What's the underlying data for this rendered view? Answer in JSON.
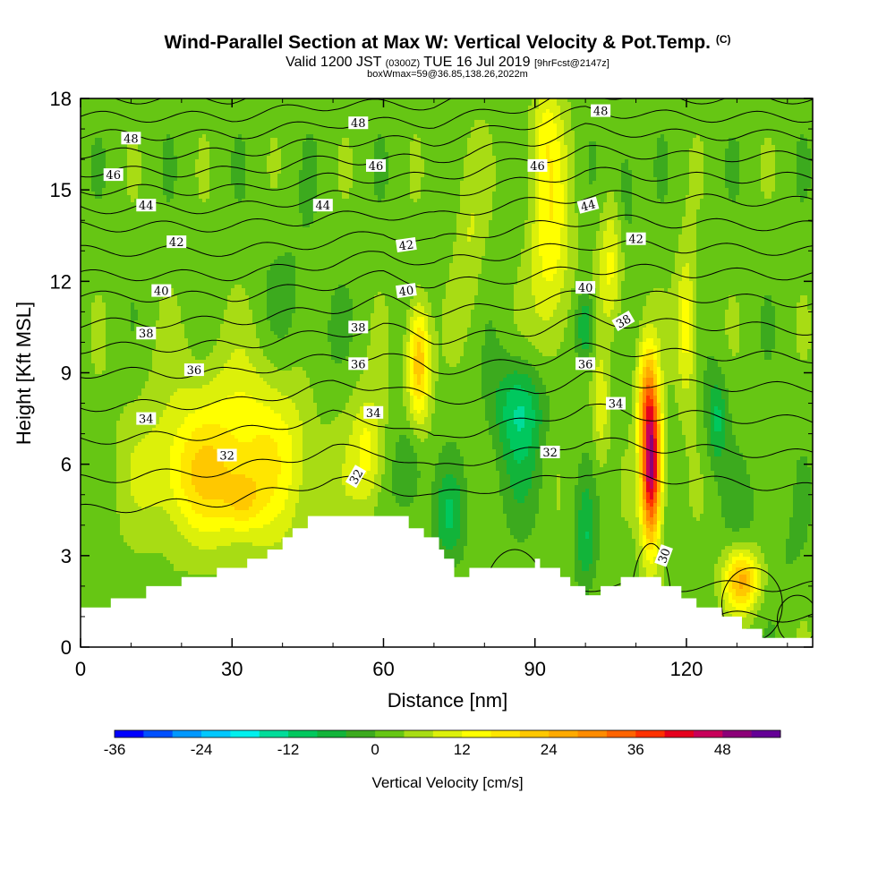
{
  "header": {
    "title": "Wind-Parallel Section at Max W: Vertical Velocity & Pot.Temp.",
    "copyright": "(C)",
    "valid_main": "Valid 1200 JST",
    "valid_utc": "(0300Z)",
    "valid_date": "TUE 16 Jul 2019",
    "forecast": "[9hrFcst@2147z]",
    "box_info": "boxWmax=59@36.85,138.26,2022m"
  },
  "chart_data": {
    "type": "heatmap",
    "xlabel": "Distance [nm]",
    "ylabel": "Height [Kft MSL]",
    "colorbar_label": "Vertical Velocity [cm/s]",
    "xlim": [
      0,
      145
    ],
    "ylim": [
      0,
      18
    ],
    "x_ticks": [
      0,
      30,
      60,
      90,
      120
    ],
    "y_ticks": [
      0,
      3,
      6,
      9,
      12,
      15,
      18
    ],
    "colorbar": {
      "min": -36,
      "max": 56,
      "step": 4,
      "tick_values": [
        -36,
        -24,
        -12,
        0,
        12,
        24,
        36,
        48
      ],
      "colors": [
        "#0000ff",
        "#0050ff",
        "#0098ff",
        "#00c8ff",
        "#00f0ee",
        "#00dc9a",
        "#00c85e",
        "#12b43a",
        "#3caa1e",
        "#66c614",
        "#a8dc14",
        "#dcf00a",
        "#ffff00",
        "#ffe600",
        "#ffc800",
        "#ffaa00",
        "#ff8c00",
        "#ff6400",
        "#ff3200",
        "#e6001e",
        "#c8005a",
        "#8c0078",
        "#640096"
      ]
    },
    "terrain": [
      [
        0,
        1.3
      ],
      [
        6,
        1.3
      ],
      [
        6,
        1.6
      ],
      [
        13,
        1.6
      ],
      [
        13,
        2.0
      ],
      [
        20,
        2.0
      ],
      [
        20,
        2.3
      ],
      [
        27,
        2.3
      ],
      [
        27,
        2.6
      ],
      [
        33,
        2.6
      ],
      [
        33,
        2.9
      ],
      [
        37,
        2.9
      ],
      [
        37,
        3.2
      ],
      [
        40,
        3.2
      ],
      [
        40,
        3.6
      ],
      [
        42,
        3.6
      ],
      [
        42,
        3.9
      ],
      [
        45,
        3.9
      ],
      [
        45,
        4.3
      ],
      [
        65,
        4.3
      ],
      [
        65,
        3.9
      ],
      [
        68,
        3.9
      ],
      [
        68,
        3.6
      ],
      [
        71,
        3.6
      ],
      [
        71,
        3.2
      ],
      [
        72,
        3.2
      ],
      [
        72,
        2.9
      ],
      [
        74,
        2.9
      ],
      [
        74,
        2.3
      ],
      [
        77,
        2.3
      ],
      [
        77,
        2.6
      ],
      [
        90,
        2.6
      ],
      [
        90,
        2.9
      ],
      [
        91,
        2.9
      ],
      [
        91,
        2.6
      ],
      [
        95,
        2.6
      ],
      [
        95,
        2.3
      ],
      [
        97,
        2.3
      ],
      [
        97,
        2.0
      ],
      [
        100,
        2.0
      ],
      [
        100,
        1.7
      ],
      [
        103,
        1.7
      ],
      [
        103,
        2.0
      ],
      [
        107,
        2.0
      ],
      [
        107,
        2.3
      ],
      [
        115,
        2.3
      ],
      [
        115,
        2.0
      ],
      [
        119,
        2.0
      ],
      [
        119,
        1.6
      ],
      [
        122,
        1.6
      ],
      [
        122,
        1.3
      ],
      [
        127,
        1.3
      ],
      [
        127,
        1.0
      ],
      [
        131,
        1.0
      ],
      [
        131,
        0.6
      ],
      [
        135,
        0.6
      ],
      [
        135,
        0.3
      ],
      [
        145,
        0.3
      ]
    ],
    "w_features": [
      {
        "x": 33,
        "z": 6.4,
        "sx": 18,
        "sz": 3.0,
        "w": 14
      },
      {
        "x": 22,
        "z": 5.5,
        "sx": 9,
        "sz": 1.8,
        "w": 8
      },
      {
        "x": 32,
        "z": 4.8,
        "sx": 4,
        "sz": 1.0,
        "w": 10
      },
      {
        "x": 42,
        "z": 11.0,
        "sx": 6,
        "sz": 3.0,
        "w": -3
      },
      {
        "x": 48,
        "z": 8.0,
        "sx": 5,
        "sz": 3.0,
        "w": -4
      },
      {
        "x": 57,
        "z": 6.4,
        "sx": 3,
        "sz": 1.8,
        "w": 10
      },
      {
        "x": 67,
        "z": 9.2,
        "sx": 2.2,
        "sz": 1.8,
        "w": 21
      },
      {
        "x": 67,
        "z": 10.5,
        "sx": 1.8,
        "sz": 1.2,
        "w": 4
      },
      {
        "x": 65,
        "z": 5.8,
        "sx": 3,
        "sz": 1.5,
        "w": -8
      },
      {
        "x": 73,
        "z": 4.3,
        "sx": 3,
        "sz": 1.5,
        "w": -9
      },
      {
        "x": 77,
        "z": 13.5,
        "sx": 3,
        "sz": 3.0,
        "w": 6
      },
      {
        "x": 87,
        "z": 7.8,
        "sx": 5,
        "sz": 1.6,
        "w": -14
      },
      {
        "x": 87,
        "z": 5.5,
        "sx": 5,
        "sz": 1.6,
        "w": -4
      },
      {
        "x": 93,
        "z": 13.5,
        "sx": 4,
        "sz": 4.0,
        "w": 13
      },
      {
        "x": 92,
        "z": 17.0,
        "sx": 2.5,
        "sz": 1.5,
        "w": 6
      },
      {
        "x": 100,
        "z": 10.5,
        "sx": 2,
        "sz": 1.2,
        "w": -12
      },
      {
        "x": 100,
        "z": 3.5,
        "sx": 2,
        "sz": 1.8,
        "w": -9
      },
      {
        "x": 103,
        "z": 7.8,
        "sx": 1.6,
        "sz": 2.0,
        "w": 9
      },
      {
        "x": 105,
        "z": 12.5,
        "sx": 2.5,
        "sz": 2.0,
        "w": 11
      },
      {
        "x": 108,
        "z": 15.0,
        "sx": 2,
        "sz": 2.0,
        "w": -6
      },
      {
        "x": 113,
        "z": 6.0,
        "sx": 2.0,
        "sz": 2.6,
        "w": 48
      },
      {
        "x": 112,
        "z": 8.5,
        "sx": 2.0,
        "sz": 1.8,
        "w": 14
      },
      {
        "x": 120,
        "z": 10.5,
        "sx": 2,
        "sz": 2.5,
        "w": 13
      },
      {
        "x": 126,
        "z": 7.5,
        "sx": 2,
        "sz": 1.5,
        "w": -11
      },
      {
        "x": 131,
        "z": 2.2,
        "sx": 3.5,
        "sz": 1.0,
        "w": 23
      },
      {
        "x": 132,
        "z": 4.5,
        "sx": 4,
        "sz": 1.5,
        "w": -3
      },
      {
        "x": 140,
        "z": 3.0,
        "sx": 4,
        "sz": 1.5,
        "w": -2
      }
    ],
    "theta_levels": [
      30,
      31,
      32,
      33,
      34,
      35,
      36,
      37,
      38,
      39,
      40,
      41,
      42,
      43,
      44,
      45,
      46,
      47,
      48,
      49
    ],
    "theta_anchors": [
      {
        "x": 0,
        "z": [
          0.5,
          1.0,
          4.5,
          5.5,
          6.8,
          7.9,
          9.0,
          9.8,
          10.6,
          11.5,
          12.2,
          13.0,
          13.8,
          14.4,
          15.0,
          15.6,
          16.2,
          16.8,
          17.4,
          18.0
        ]
      },
      {
        "x": 30,
        "z": [
          0.5,
          1.0,
          4.8,
          5.8,
          7.0,
          8.0,
          9.0,
          9.9,
          10.7,
          11.5,
          12.2,
          13.0,
          13.8,
          14.4,
          15.0,
          15.6,
          16.2,
          16.8,
          17.4,
          18.0
        ]
      },
      {
        "x": 50,
        "z": [
          1.0,
          2.0,
          5.5,
          6.5,
          7.6,
          8.6,
          9.5,
          10.3,
          11.1,
          11.9,
          12.6,
          13.3,
          14.1,
          14.8,
          15.4,
          16.0,
          16.6,
          17.2,
          17.8,
          18.5
        ]
      },
      {
        "x": 60,
        "z": [
          1.0,
          2.0,
          5.3,
          6.4,
          7.4,
          8.6,
          9.6,
          10.5,
          11.4,
          12.2,
          12.9,
          13.6,
          14.2,
          14.8,
          15.4,
          16.0,
          16.6,
          17.2,
          17.8,
          18.4
        ]
      },
      {
        "x": 70,
        "z": [
          1.0,
          2.0,
          4.9,
          5.8,
          6.8,
          8.1,
          9.1,
          10.1,
          11.0,
          11.9,
          12.6,
          13.3,
          14.1,
          14.8,
          15.4,
          16.0,
          16.6,
          17.2,
          17.8,
          18.4
        ]
      },
      {
        "x": 80,
        "z": [
          1.0,
          2.0,
          5.2,
          6.2,
          7.2,
          8.2,
          9.2,
          10.2,
          11.1,
          12.0,
          12.8,
          13.6,
          14.4,
          15.1,
          15.7,
          16.3,
          16.9,
          17.5,
          18.1,
          18.6
        ]
      },
      {
        "x": 90,
        "z": [
          1.0,
          2.0,
          5.4,
          6.4,
          7.4,
          8.4,
          9.4,
          10.4,
          11.3,
          12.2,
          13.0,
          13.8,
          14.6,
          15.3,
          16.0,
          16.6,
          17.2,
          17.8,
          18.4,
          19.0
        ]
      },
      {
        "x": 100,
        "z": [
          1.0,
          2.0,
          5.8,
          6.8,
          7.9,
          8.9,
          9.8,
          10.8,
          11.6,
          12.4,
          13.2,
          14.0,
          14.8,
          15.6,
          16.3,
          17.0,
          17.6,
          18.2,
          18.8,
          19.4
        ]
      },
      {
        "x": 110,
        "z": [
          1.0,
          2.0,
          5.6,
          6.6,
          7.6,
          8.7,
          9.7,
          10.6,
          11.5,
          12.4,
          13.2,
          14.0,
          14.8,
          15.5,
          16.2,
          16.9,
          17.5,
          18.1,
          18.7,
          19.3
        ]
      },
      {
        "x": 120,
        "z": [
          1.0,
          2.0,
          5.5,
          6.5,
          7.6,
          8.6,
          9.6,
          10.6,
          11.5,
          12.3,
          13.1,
          13.9,
          14.7,
          15.4,
          16.1,
          16.8,
          17.4,
          18.0,
          18.6,
          19.2
        ]
      },
      {
        "x": 145,
        "z": [
          1.0,
          2.0,
          5.2,
          6.3,
          7.4,
          8.5,
          9.5,
          10.4,
          11.3,
          12.2,
          13.0,
          13.8,
          14.6,
          15.4,
          16.1,
          16.8,
          17.4,
          18.0,
          18.6,
          19.2
        ]
      }
    ],
    "theta_labels": [
      {
        "text": "48",
        "x": 10.0,
        "z": 16.7,
        "angle": 0
      },
      {
        "text": "46",
        "x": 6.5,
        "z": 15.5,
        "angle": 0
      },
      {
        "text": "44",
        "x": 13.0,
        "z": 14.5,
        "angle": 0
      },
      {
        "text": "42",
        "x": 19.0,
        "z": 13.3,
        "angle": 0
      },
      {
        "text": "40",
        "x": 16.0,
        "z": 11.7,
        "angle": 0
      },
      {
        "text": "38",
        "x": 13.0,
        "z": 10.3,
        "angle": 0
      },
      {
        "text": "36",
        "x": 22.5,
        "z": 9.1,
        "angle": 0
      },
      {
        "text": "34",
        "x": 13.0,
        "z": 7.5,
        "angle": 0
      },
      {
        "text": "32",
        "x": 29.0,
        "z": 6.3,
        "angle": 0
      },
      {
        "text": "48",
        "x": 55.0,
        "z": 17.2,
        "angle": 0
      },
      {
        "text": "46",
        "x": 58.5,
        "z": 15.8,
        "angle": 0
      },
      {
        "text": "44",
        "x": 48.0,
        "z": 14.5,
        "angle": 0
      },
      {
        "text": "42",
        "x": 64.5,
        "z": 13.2,
        "angle": -8
      },
      {
        "text": "40",
        "x": 64.5,
        "z": 11.7,
        "angle": -8
      },
      {
        "text": "38",
        "x": 55.0,
        "z": 10.5,
        "angle": 0
      },
      {
        "text": "36",
        "x": 55.0,
        "z": 9.3,
        "angle": 0
      },
      {
        "text": "34",
        "x": 58.0,
        "z": 7.7,
        "angle": 0
      },
      {
        "text": "32",
        "x": 54.5,
        "z": 5.6,
        "angle": -60
      },
      {
        "text": "48",
        "x": 103.0,
        "z": 17.6,
        "angle": 0
      },
      {
        "text": "46",
        "x": 90.5,
        "z": 15.8,
        "angle": 0
      },
      {
        "text": "44",
        "x": 100.5,
        "z": 14.5,
        "angle": -15
      },
      {
        "text": "42",
        "x": 110.0,
        "z": 13.4,
        "angle": 0
      },
      {
        "text": "40",
        "x": 100.0,
        "z": 11.8,
        "angle": 0
      },
      {
        "text": "38",
        "x": 107.5,
        "z": 10.7,
        "angle": -30
      },
      {
        "text": "36",
        "x": 100.0,
        "z": 9.3,
        "angle": 0
      },
      {
        "text": "34",
        "x": 106.0,
        "z": 8.0,
        "angle": 0
      },
      {
        "text": "32",
        "x": 93.0,
        "z": 6.4,
        "angle": 0
      },
      {
        "text": "30",
        "x": 115.5,
        "z": 3.0,
        "angle": -70
      }
    ]
  }
}
